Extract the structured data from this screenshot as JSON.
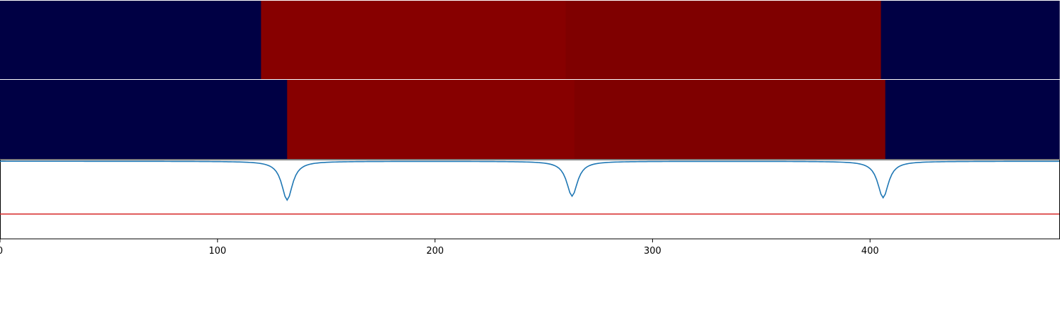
{
  "chart_data": {
    "type": "heatmap",
    "xlim": [
      0,
      487
    ],
    "x_ticks": [
      0,
      100,
      200,
      300,
      400
    ],
    "x_tick_labels": [
      "0",
      "100",
      "200",
      "300",
      "400"
    ],
    "colors": {
      "low": "#000044",
      "high_a": "#870000",
      "high_b": "#7f0000",
      "line": "#1f77b4",
      "threshold": "#d62728"
    },
    "tracks": [
      {
        "segments": [
          {
            "start": 0,
            "end": 120,
            "color": "#000044"
          },
          {
            "start": 120,
            "end": 260,
            "color": "#870000"
          },
          {
            "start": 260,
            "end": 405,
            "color": "#7f0000"
          },
          {
            "start": 405,
            "end": 487,
            "color": "#000044"
          }
        ]
      },
      {
        "segments": [
          {
            "start": 0,
            "end": 132,
            "color": "#000044"
          },
          {
            "start": 132,
            "end": 264,
            "color": "#870000"
          },
          {
            "start": 264,
            "end": 407,
            "color": "#7f0000"
          },
          {
            "start": 407,
            "end": 487,
            "color": "#000044"
          }
        ]
      }
    ],
    "signal": {
      "baseline": 0,
      "ylim": [
        -1.0,
        0.02
      ],
      "dips": [
        {
          "center": 132,
          "depth": 0.5
        },
        {
          "center": 263,
          "depth": 0.45
        },
        {
          "center": 406,
          "depth": 0.47
        }
      ],
      "threshold": -0.68
    }
  }
}
